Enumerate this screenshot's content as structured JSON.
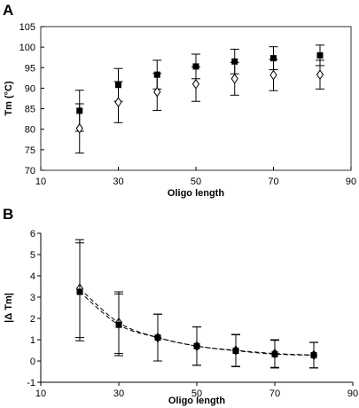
{
  "chart_data": [
    {
      "panel_label": "A",
      "type": "scatter",
      "xlabel": "Oligo length",
      "ylabel": "Tm (°C)",
      "xlim": [
        10,
        90
      ],
      "ylim": [
        70,
        105
      ],
      "x_ticks": [
        10,
        30,
        50,
        70,
        90
      ],
      "y_ticks": [
        70,
        75,
        80,
        85,
        90,
        95,
        100,
        105
      ],
      "frame": "box",
      "legend": "none",
      "series": [
        {
          "marker": "filled-square",
          "x": [
            20,
            30,
            40,
            50,
            60,
            70,
            82
          ],
          "y": [
            84.5,
            90.8,
            93.3,
            95.3,
            96.5,
            97.3,
            98.0
          ],
          "error": [
            5,
            4,
            3.5,
            3,
            3,
            2.8,
            2.5
          ]
        },
        {
          "marker": "open-diamond",
          "x": [
            20,
            30,
            40,
            50,
            60,
            70,
            82
          ],
          "y": [
            80.2,
            86.6,
            89.1,
            91.0,
            92.3,
            93.2,
            93.3
          ],
          "error": [
            6,
            5,
            4.5,
            4.2,
            4,
            3.8,
            3.5
          ]
        }
      ]
    },
    {
      "panel_label": "B",
      "type": "scatter",
      "xlabel": "Oligo length",
      "ylabel": "|Δ Tm|",
      "xlim": [
        10,
        90
      ],
      "ylim": [
        -1,
        6
      ],
      "x_ticks": [
        10,
        30,
        50,
        70,
        90
      ],
      "y_ticks": [
        -1,
        0,
        1,
        2,
        3,
        4,
        5,
        6
      ],
      "frame": "open",
      "legend": "none",
      "series": [
        {
          "marker": "open-diamond",
          "x": [
            20,
            30,
            40,
            50,
            60,
            70,
            80
          ],
          "y": [
            3.4,
            1.8,
            1.1,
            0.7,
            0.5,
            0.35,
            0.28
          ],
          "error": [
            2.3,
            1.45,
            1.1,
            0.9,
            0.75,
            0.65,
            0.6
          ]
        },
        {
          "marker": "filled-square",
          "x": [
            20,
            30,
            40,
            50,
            60,
            70,
            80
          ],
          "y": [
            3.25,
            1.7,
            1.1,
            0.7,
            0.48,
            0.32,
            0.27
          ],
          "error": [
            2.3,
            1.45,
            1.1,
            0.9,
            0.75,
            0.65,
            0.6
          ]
        }
      ]
    }
  ]
}
